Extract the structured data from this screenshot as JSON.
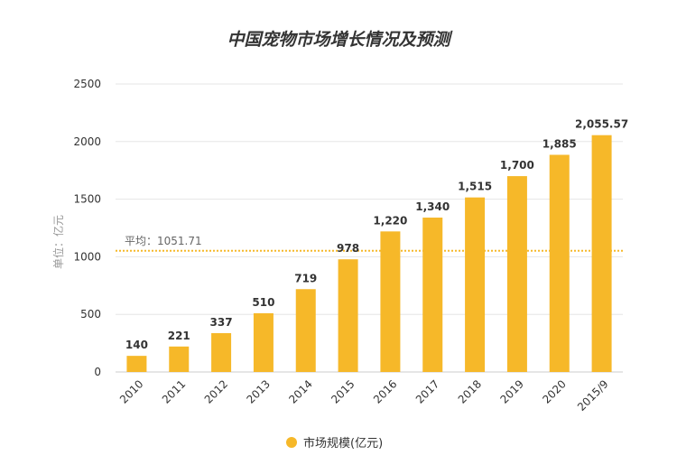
{
  "chart_data": {
    "type": "bar",
    "title": "中国宠物市场增长情况及预测",
    "ylabel": "单位：亿元",
    "categories": [
      "2010",
      "2011",
      "2012",
      "2013",
      "2014",
      "2015",
      "2016",
      "2017",
      "2018",
      "2019",
      "2020",
      "2015/9"
    ],
    "series": [
      {
        "name": "市场规模(亿元)",
        "values": [
          140,
          221,
          337,
          510,
          719,
          978,
          1220,
          1340,
          1515,
          1700,
          1885,
          2055.57
        ]
      }
    ],
    "data_labels": [
      "140",
      "221",
      "337",
      "510",
      "719",
      "978",
      "1,220",
      "1,340",
      "1,515",
      "1,700",
      "1,885",
      "2,055.57"
    ],
    "ylim": [
      0,
      2500
    ],
    "yticks": [
      "0",
      "500",
      "1000",
      "1500",
      "2000",
      "2500"
    ],
    "average": {
      "label": "平均：1051.71",
      "value": 1051.71
    },
    "grid": true,
    "legend_position": "bottom-center",
    "colors": {
      "bar": "#f6b829",
      "average_line": "#f6b829",
      "grid": "#e6e6e6"
    }
  }
}
